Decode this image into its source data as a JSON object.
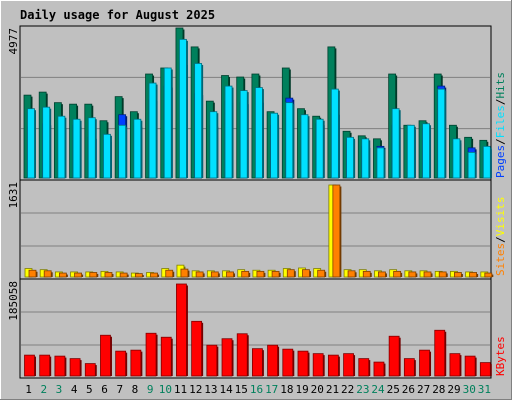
{
  "title": "Daily usage for August 2025",
  "colors": {
    "background": "#c0c0c0",
    "title": "#0000ff",
    "hits": "#00805c",
    "files": "#00e0ff",
    "pages": "#0040ff",
    "visits": "#ffff00",
    "sites": "#ff8000",
    "kbytes": "#ff0000",
    "weekday": "#000000",
    "weekend": "#00805c"
  },
  "chart_data": [
    {
      "type": "bar",
      "panel": "hits-files-pages",
      "ymax_label": "4977",
      "ylim": [
        0,
        4977
      ],
      "grid": true,
      "legend": [
        "Pages",
        "Files",
        "Hits"
      ],
      "categories": [
        "1",
        "2",
        "3",
        "4",
        "5",
        "6",
        "7",
        "8",
        "9",
        "10",
        "11",
        "12",
        "13",
        "14",
        "15",
        "16",
        "17",
        "18",
        "19",
        "20",
        "21",
        "22",
        "23",
        "24",
        "25",
        "26",
        "27",
        "28",
        "29",
        "30",
        "31"
      ],
      "series": [
        {
          "name": "Hits",
          "values": [
            2750,
            2850,
            2500,
            2450,
            2450,
            1900,
            2700,
            2200,
            3450,
            3650,
            4977,
            4350,
            2550,
            3400,
            3350,
            3450,
            2200,
            3650,
            2300,
            2050,
            4350,
            1550,
            1400,
            1300,
            3450,
            1750,
            1900,
            3450,
            1750,
            1350,
            1250
          ]
        },
        {
          "name": "Files",
          "values": [
            2300,
            2350,
            2050,
            1950,
            2000,
            1450,
            1750,
            1950,
            3150,
            3650,
            4600,
            3800,
            2200,
            3050,
            2900,
            3000,
            2150,
            2500,
            2100,
            1950,
            2950,
            1350,
            1300,
            1000,
            2300,
            1750,
            1800,
            2950,
            1300,
            850,
            1050
          ]
        },
        {
          "name": "Pages",
          "values": [
            1700,
            1800,
            1700,
            1750,
            1350,
            1250,
            2100,
            1750,
            2600,
            3050,
            3800,
            2800,
            1750,
            2550,
            2500,
            2550,
            1750,
            2650,
            1850,
            1800,
            2150,
            1300,
            1050,
            1050,
            1750,
            1650,
            1650,
            3050,
            1200,
            1000,
            1000
          ]
        }
      ]
    },
    {
      "type": "bar",
      "panel": "visits-sites",
      "ymax_label": "1631",
      "ylim": [
        0,
        1631
      ],
      "grid": true,
      "legend": [
        "Sites",
        "Visits"
      ],
      "categories": [
        "1",
        "2",
        "3",
        "4",
        "5",
        "6",
        "7",
        "8",
        "9",
        "10",
        "11",
        "12",
        "13",
        "14",
        "15",
        "16",
        "17",
        "18",
        "19",
        "20",
        "21",
        "22",
        "23",
        "24",
        "25",
        "26",
        "27",
        "28",
        "29",
        "30",
        "31"
      ],
      "series": [
        {
          "name": "Visits",
          "values": [
            150,
            130,
            90,
            90,
            90,
            100,
            90,
            70,
            80,
            150,
            210,
            110,
            110,
            110,
            130,
            120,
            120,
            150,
            160,
            150,
            1631,
            130,
            130,
            110,
            130,
            110,
            110,
            100,
            100,
            90,
            90
          ]
        },
        {
          "name": "Sites",
          "values": [
            120,
            110,
            70,
            70,
            80,
            80,
            70,
            60,
            70,
            120,
            140,
            90,
            90,
            90,
            100,
            100,
            100,
            130,
            130,
            120,
            1631,
            110,
            100,
            90,
            100,
            90,
            90,
            90,
            80,
            80,
            70
          ]
        }
      ]
    },
    {
      "type": "bar",
      "panel": "kbytes",
      "ymax_label": "185058",
      "ylim": [
        0,
        185058
      ],
      "grid": true,
      "legend": [
        "KBytes"
      ],
      "categories": [
        "1",
        "2",
        "3",
        "4",
        "5",
        "6",
        "7",
        "8",
        "9",
        "10",
        "11",
        "12",
        "13",
        "14",
        "15",
        "16",
        "17",
        "18",
        "19",
        "20",
        "21",
        "22",
        "23",
        "24",
        "25",
        "26",
        "27",
        "28",
        "29",
        "30",
        "31"
      ],
      "series": [
        {
          "name": "KBytes",
          "values": [
            42000,
            42000,
            40000,
            35000,
            25000,
            82000,
            50000,
            52000,
            86000,
            78000,
            185058,
            110000,
            62000,
            75000,
            85000,
            55000,
            62000,
            54000,
            50000,
            45000,
            42000,
            45000,
            35000,
            28000,
            80000,
            35000,
            52000,
            92000,
            45000,
            40000,
            27000
          ]
        }
      ]
    }
  ],
  "weekend_days": [
    "2",
    "3",
    "9",
    "10",
    "16",
    "17",
    "23",
    "24",
    "30",
    "31"
  ]
}
